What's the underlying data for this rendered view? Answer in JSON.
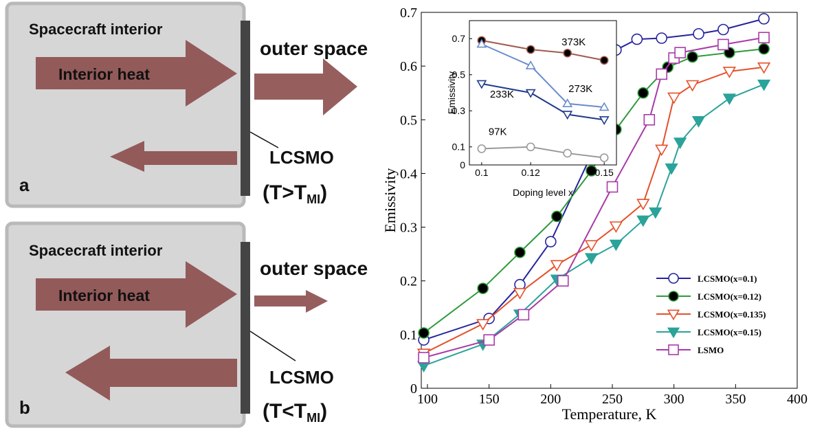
{
  "panels": [
    {
      "letter": "a",
      "interior": "Spacecraft interior",
      "outer": "outer space",
      "heat": "Interior heat",
      "material": "LCSMO",
      "condition": [
        "(T>T",
        "MI",
        ")"
      ]
    },
    {
      "letter": "b",
      "interior": "Spacecraft interior",
      "outer": "outer space",
      "heat": "Interior heat",
      "material": "LCSMO",
      "condition": [
        "(T<T",
        "MI",
        ")"
      ]
    }
  ],
  "chart_data": [
    {
      "type": "line",
      "xlabel": "Temperature, K",
      "ylabel": "Emissivity",
      "xlim": [
        95,
        400
      ],
      "ylim": [
        0,
        0.7
      ],
      "xticks": [
        100,
        150,
        200,
        250,
        300,
        350,
        400
      ],
      "yticks": [
        0,
        0.1,
        0.2,
        0.3,
        0.4,
        0.5,
        0.6,
        0.7
      ],
      "series": [
        {
          "name": "LCSMO(x=0.1)",
          "color": "#25239e",
          "marker": "circle-open",
          "x": [
            97,
            150,
            175,
            200,
            233,
            248,
            253,
            270,
            290,
            320,
            340,
            373
          ],
          "values": [
            0.09,
            0.13,
            0.193,
            0.273,
            0.435,
            0.535,
            0.63,
            0.65,
            0.652,
            0.66,
            0.668,
            0.688
          ]
        },
        {
          "name": "LCSMO(x=0.12)",
          "color": "#2e9a3a",
          "marker": "circle-filled",
          "x": [
            97,
            145,
            175,
            205,
            233,
            253,
            275,
            295,
            315,
            345,
            373
          ],
          "values": [
            0.103,
            0.186,
            0.253,
            0.32,
            0.405,
            0.482,
            0.55,
            0.598,
            0.617,
            0.625,
            0.632
          ]
        },
        {
          "name": "LCSMO(x=0.135)",
          "color": "#e4502a",
          "marker": "triangle-down-open",
          "x": [
            97,
            145,
            175,
            205,
            233,
            253,
            275,
            290,
            300,
            315,
            345,
            373
          ],
          "values": [
            0.065,
            0.12,
            0.178,
            0.23,
            0.267,
            0.302,
            0.344,
            0.445,
            0.542,
            0.565,
            0.59,
            0.598
          ]
        },
        {
          "name": "LCSMO(x=0.15)",
          "color": "#2aa39a",
          "marker": "triangle-down-filled",
          "x": [
            97,
            145,
            175,
            205,
            233,
            253,
            275,
            285,
            298,
            305,
            320,
            345,
            373
          ],
          "values": [
            0.042,
            0.082,
            0.138,
            0.203,
            0.243,
            0.268,
            0.313,
            0.328,
            0.41,
            0.458,
            0.498,
            0.54,
            0.566
          ]
        },
        {
          "name": "LSMO",
          "color": "#a83aa8",
          "marker": "square-open",
          "x": [
            97,
            150,
            178,
            210,
            250,
            280,
            290,
            300,
            305,
            340,
            373
          ],
          "values": [
            0.057,
            0.09,
            0.137,
            0.2,
            0.375,
            0.5,
            0.585,
            0.615,
            0.625,
            0.64,
            0.653
          ]
        }
      ],
      "legend": "lower right"
    },
    {
      "type": "line",
      "xlabel": "Doping level x",
      "ylabel": "Emissivity",
      "xlim": [
        0.095,
        0.155
      ],
      "ylim": [
        0,
        0.8
      ],
      "xticks": [
        0.1,
        0.12,
        0.15
      ],
      "yticks": [
        0,
        0.1,
        0.3,
        0.5,
        0.7
      ],
      "series": [
        {
          "name": "373K",
          "color": "#a05a50",
          "marker": "circle-filled",
          "x": [
            0.1,
            0.12,
            0.135,
            0.15
          ],
          "values": [
            0.69,
            0.64,
            0.62,
            0.58
          ]
        },
        {
          "name": "273K",
          "color": "#6a8ccc",
          "marker": "triangle-up-open",
          "x": [
            0.1,
            0.12,
            0.135,
            0.15
          ],
          "values": [
            0.67,
            0.55,
            0.34,
            0.32
          ]
        },
        {
          "name": "233K",
          "color": "#1f3a8a",
          "marker": "triangle-down-open",
          "x": [
            0.1,
            0.12,
            0.135,
            0.15
          ],
          "values": [
            0.45,
            0.4,
            0.28,
            0.25
          ]
        },
        {
          "name": "97K",
          "color": "#999999",
          "marker": "circle-open",
          "x": [
            0.1,
            0.12,
            0.135,
            0.15
          ],
          "values": [
            0.09,
            0.1,
            0.065,
            0.04
          ]
        }
      ]
    }
  ]
}
